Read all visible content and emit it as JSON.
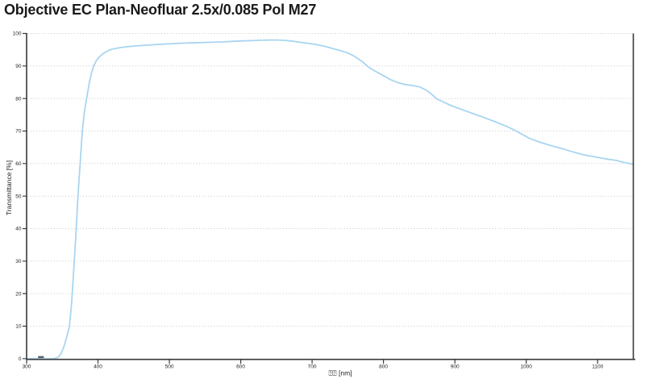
{
  "page": {
    "background": "#ffffff"
  },
  "chart_data": {
    "type": "line",
    "title": "Objective EC Plan-Neofluar 2.5x/0.085 Pol M27",
    "xlabel": "⍰⍰ [nm]",
    "ylabel": "Transmittance [%]",
    "xlim": [
      300,
      1150
    ],
    "ylim": [
      0,
      100
    ],
    "x_ticks": [
      300,
      400,
      500,
      600,
      700,
      800,
      900,
      1000,
      1100
    ],
    "y_ticks": [
      0,
      10,
      20,
      30,
      40,
      50,
      60,
      70,
      80,
      90,
      100
    ],
    "grid": "horizontal-dotted",
    "legend": "none",
    "colors": {
      "curve": "#a9d5f0",
      "axis": "#3a3a3a",
      "grid": "#c8c8c8",
      "tick_text": "#1f1f1f",
      "title_text": "#1a1a1a",
      "marker": "#51606b"
    },
    "series": [
      {
        "name": "Transmittance",
        "color": "#a9d5f0",
        "x": [
          300,
          310,
          320,
          330,
          338,
          344,
          348,
          352,
          356,
          360,
          363,
          366,
          369,
          372,
          375,
          378,
          381,
          384,
          388,
          391,
          394,
          398,
          402,
          406,
          410,
          415,
          420,
          430,
          440,
          450,
          462,
          475,
          490,
          500,
          515,
          530,
          545,
          560,
          575,
          590,
          600,
          615,
          625,
          640,
          650,
          660,
          670,
          680,
          690,
          700,
          710,
          720,
          730,
          740,
          750,
          760,
          770,
          780,
          790,
          800,
          810,
          820,
          830,
          840,
          850,
          858,
          866,
          874,
          885,
          895,
          905,
          915,
          925,
          935,
          945,
          955,
          965,
          975,
          985,
          995,
          1005,
          1020,
          1035,
          1050,
          1065,
          1080,
          1095,
          1110,
          1125,
          1140,
          1150
        ],
        "y": [
          0,
          0,
          0,
          0,
          0,
          0.4,
          1.5,
          3.5,
          6.5,
          10,
          17,
          27,
          38,
          50,
          60,
          70,
          76,
          80,
          85,
          88,
          90,
          91.8,
          92.8,
          93.6,
          94.2,
          94.8,
          95.2,
          95.6,
          95.9,
          96.1,
          96.3,
          96.5,
          96.7,
          96.8,
          97.0,
          97.1,
          97.2,
          97.3,
          97.4,
          97.6,
          97.7,
          97.8,
          97.9,
          98.0,
          98.0,
          97.9,
          97.7,
          97.4,
          97.1,
          96.8,
          96.4,
          95.9,
          95.3,
          94.7,
          94.0,
          92.9,
          91.4,
          89.5,
          88.2,
          87.0,
          85.8,
          84.9,
          84.3,
          84.0,
          83.6,
          82.8,
          81.6,
          80.0,
          78.8,
          77.8,
          77.0,
          76.2,
          75.4,
          74.6,
          73.8,
          73.0,
          72.1,
          71.2,
          70.1,
          68.9,
          67.7,
          66.5,
          65.5,
          64.6,
          63.6,
          62.7,
          62.1,
          61.5,
          61.0,
          60.2,
          59.8
        ]
      }
    ],
    "annotations": [
      {
        "type": "dash-marker",
        "x_start_nm": 316,
        "x_end_nm": 324,
        "y_pct": 0.5,
        "color": "#51606b"
      }
    ]
  }
}
